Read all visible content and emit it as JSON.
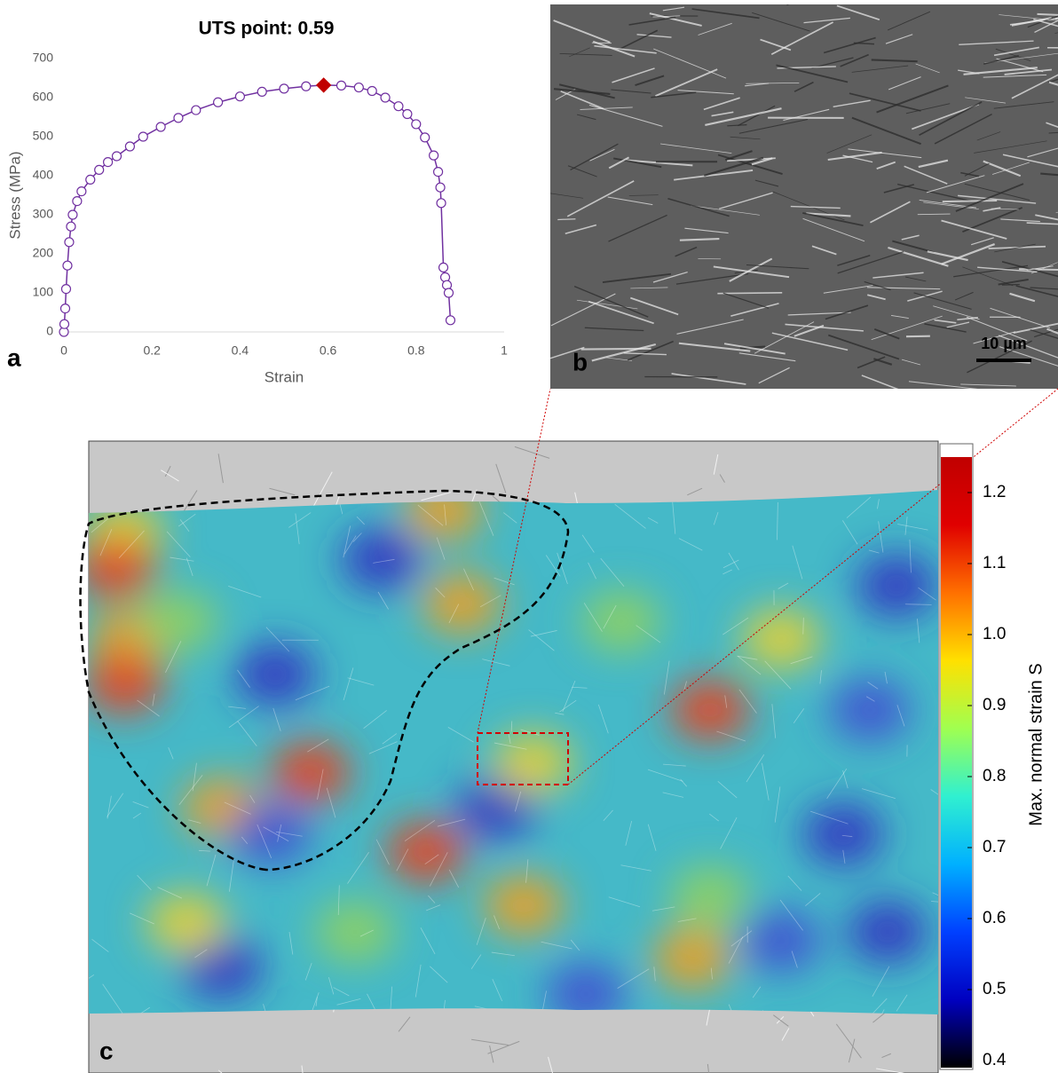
{
  "chart_data": [
    {
      "type": "line",
      "title": "UTS point: 0.59",
      "xlabel": "Strain",
      "ylabel": "Stress (MPa)",
      "x": [
        0,
        0.001,
        0.003,
        0.005,
        0.008,
        0.012,
        0.016,
        0.02,
        0.03,
        0.04,
        0.06,
        0.08,
        0.1,
        0.12,
        0.15,
        0.18,
        0.22,
        0.26,
        0.3,
        0.35,
        0.4,
        0.45,
        0.5,
        0.55,
        0.59,
        0.63,
        0.67,
        0.7,
        0.73,
        0.76,
        0.78,
        0.8,
        0.82,
        0.84,
        0.85,
        0.855,
        0.857,
        0.862,
        0.866,
        0.87,
        0.874,
        0.878
      ],
      "values": [
        0,
        20,
        60,
        110,
        170,
        230,
        270,
        300,
        335,
        360,
        390,
        415,
        435,
        450,
        475,
        500,
        525,
        548,
        568,
        588,
        603,
        615,
        623,
        629,
        632,
        631,
        626,
        617,
        600,
        578,
        558,
        532,
        498,
        452,
        410,
        370,
        330,
        165,
        140,
        120,
        100,
        30
      ],
      "color": "#7030a0",
      "highlight": {
        "x": 0.59,
        "y": 632,
        "color": "#c00000"
      },
      "xlim": [
        0,
        1
      ],
      "xticks": [
        0,
        0.2,
        0.4,
        0.6,
        0.8,
        1
      ],
      "ylim": [
        0,
        700
      ],
      "yticks": [
        0,
        100,
        200,
        300,
        400,
        500,
        600,
        700
      ],
      "grid": false
    },
    {
      "type": "colorbar",
      "label": "Max. normal strain S",
      "ylim": [
        0.39,
        1.25
      ],
      "yticks": [
        0.4,
        0.5,
        0.6,
        0.7,
        0.8,
        0.9,
        {
          "value": 1,
          "label": "1.0"
        },
        1.1,
        1.2
      ],
      "colors": [
        "#000000",
        "#0000c0",
        "#0040ff",
        "#00b0ff",
        "#30f0d0",
        "#a0ff50",
        "#ffe000",
        "#ff7000",
        "#e00000",
        "#c00000"
      ]
    }
  ],
  "labels": {
    "panel_a": "a",
    "panel_b": "b",
    "panel_c": "c",
    "scale_bar": "10 µm"
  }
}
